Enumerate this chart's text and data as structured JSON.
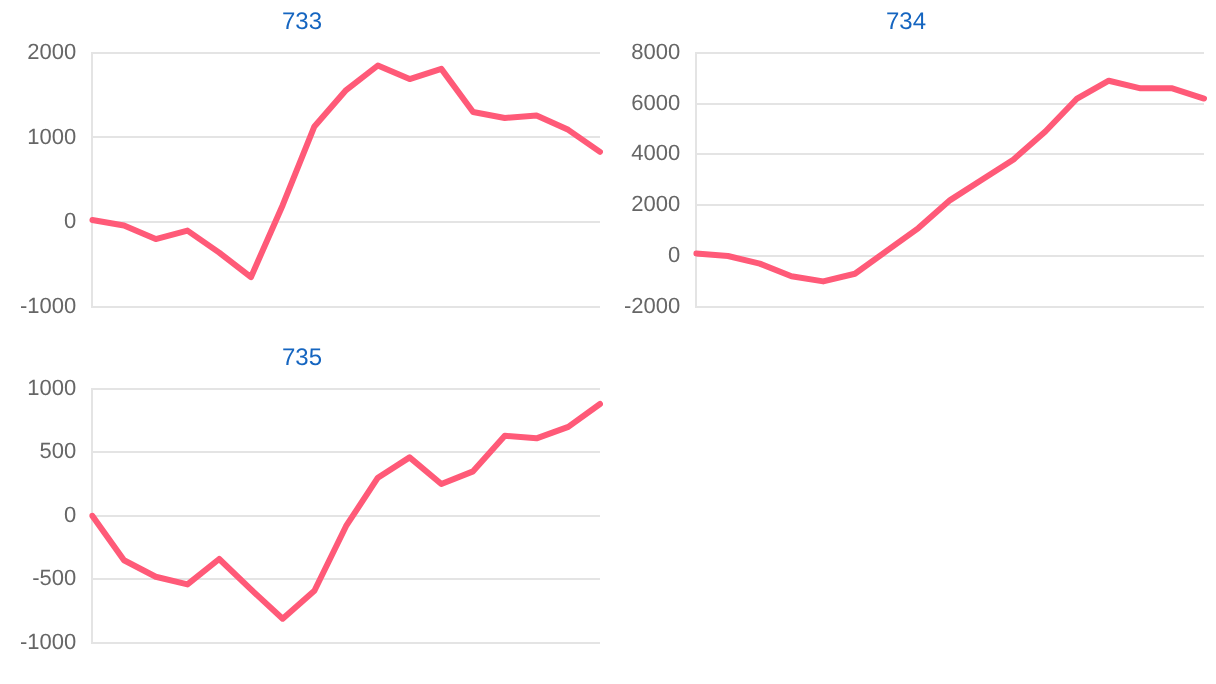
{
  "chart_data": [
    {
      "type": "line",
      "title": "733",
      "categories": [
        null,
        null,
        null,
        null,
        null,
        null,
        null,
        null,
        null,
        null,
        null,
        null,
        null,
        null,
        null,
        null,
        null
      ],
      "series": [
        {
          "color": "#ff5a78",
          "values": [
            25,
            -40,
            -200,
            -100,
            -360,
            -650,
            200,
            1130,
            1560,
            1850,
            1690,
            1810,
            1300,
            1230,
            1260,
            1090,
            830
          ]
        }
      ],
      "ylim": [
        -1000,
        2000
      ],
      "yticks": [
        -1000,
        0,
        1000,
        2000
      ],
      "grid": "y",
      "tick_labels": "y",
      "marker": "none",
      "legend": false
    },
    {
      "type": "line",
      "title": "734",
      "categories": [
        null,
        null,
        null,
        null,
        null,
        null,
        null,
        null,
        null,
        null,
        null,
        null,
        null,
        null,
        null,
        null,
        null
      ],
      "series": [
        {
          "color": "#ff5a78",
          "values": [
            100,
            0,
            -300,
            -800,
            -1000,
            -700,
            200,
            1100,
            2200,
            3000,
            3800,
            4900,
            6200,
            6900,
            6600,
            6600,
            6200
          ]
        }
      ],
      "ylim": [
        -2000,
        8000
      ],
      "yticks": [
        -2000,
        0,
        2000,
        4000,
        6000,
        8000
      ],
      "grid": "y",
      "tick_labels": "y",
      "marker": "none",
      "legend": false
    },
    {
      "type": "line",
      "title": "735",
      "categories": [
        null,
        null,
        null,
        null,
        null,
        null,
        null,
        null,
        null,
        null,
        null,
        null,
        null,
        null,
        null,
        null,
        null
      ],
      "series": [
        {
          "color": "#ff5a78",
          "values": [
            0,
            -350,
            -480,
            -540,
            -340,
            -580,
            -810,
            -590,
            -80,
            300,
            460,
            250,
            350,
            630,
            610,
            700,
            880
          ]
        }
      ],
      "ylim": [
        -1000,
        1000
      ],
      "yticks": [
        -1000,
        -500,
        0,
        500,
        1000
      ],
      "grid": "y",
      "tick_labels": "y",
      "marker": "none",
      "legend": false
    }
  ]
}
